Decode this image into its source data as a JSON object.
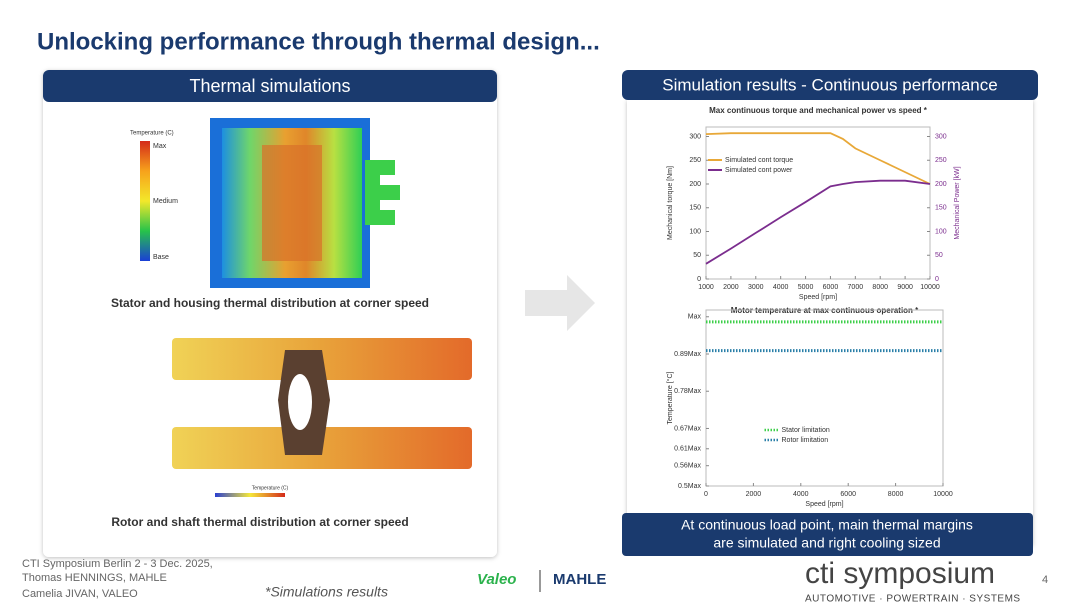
{
  "title": "Unlocking performance through thermal design...",
  "left_panel": {
    "title": "Thermal simulations",
    "stator_legend": {
      "title": "Temperature (C)",
      "labels": [
        "Max",
        "Medium",
        "Base"
      ]
    },
    "stator_caption": "Stator and housing thermal distribution at corner speed",
    "rotor_legend": {
      "title": "Temperature (C)"
    },
    "rotor_caption": "Rotor and shaft thermal distribution at corner  speed"
  },
  "right_panel": {
    "title": "Simulation results - Continuous performance",
    "footer": [
      "At continuous load point, main thermal margins",
      "are simulated and right cooling sized"
    ]
  },
  "footer": {
    "event": [
      "CTI Symposium Berlin 2 - 3 Dec. 2025,",
      "Thomas HENNINGS, MAHLE",
      "Camelia JIVAN, VALEO"
    ],
    "note": "*Simulations results",
    "logos": [
      "Valeo",
      "MAHLE"
    ],
    "brand": "cti symposium",
    "tagline": "AUTOMOTIVE · POWERTRAIN · SYSTEMS",
    "page": "4"
  },
  "chart_data": [
    {
      "type": "line",
      "title": "Max continuous torque and mechanical power vs speed *",
      "x_label": "Speed [rpm]",
      "y_label": "Mechanical torque [Nm]",
      "y2_label": "Mechanical Power [kW]",
      "x": [
        1000,
        2000,
        3000,
        4000,
        5000,
        6000,
        6500,
        7000,
        8000,
        9000,
        10000
      ],
      "xlim": [
        1000,
        10000
      ],
      "xticks": [
        1000,
        2000,
        3000,
        4000,
        5000,
        6000,
        7000,
        8000,
        9000,
        10000
      ],
      "ylim": [
        0,
        320
      ],
      "yticks": [
        0,
        50,
        100,
        150,
        200,
        250,
        300
      ],
      "y2lim": [
        0,
        320
      ],
      "y2ticks": [
        0,
        50,
        100,
        150,
        200,
        250,
        300
      ],
      "legend": "upper left",
      "line_style": "solid",
      "series": [
        {
          "name": "Simulated cont torque",
          "color": "#e8a838",
          "values": [
            305,
            307,
            307,
            307,
            307,
            307,
            295,
            275,
            250,
            225,
            200
          ]
        },
        {
          "name": "Simulated cont power",
          "color": "#7b2d8e",
          "axis": "y2",
          "values": [
            32,
            64,
            97,
            130,
            162,
            195,
            200,
            204,
            207,
            207,
            200
          ]
        }
      ]
    },
    {
      "type": "line",
      "title": "Motor temperature at max continuous operation *",
      "x_label": "Speed [rpm]",
      "y_label": "Temperature [°C]",
      "x": [
        0,
        10000
      ],
      "xlim": [
        0,
        10000
      ],
      "xticks": [
        0,
        2000,
        4000,
        6000,
        8000,
        10000
      ],
      "ylim": [
        0.5,
        1.02
      ],
      "yticks": [
        {
          "value": 0.5,
          "label": "0.5Max"
        },
        {
          "value": 0.56,
          "label": "0.56Max"
        },
        {
          "value": 0.61,
          "label": "0.61Max"
        },
        {
          "value": 0.67,
          "label": "0.67Max"
        },
        {
          "value": 0.78,
          "label": "0.78Max"
        },
        {
          "value": 0.89,
          "label": "0.89Max"
        },
        {
          "value": 1,
          "label": "Max"
        }
      ],
      "legend": "lower center",
      "line_style": "dotted",
      "series": [
        {
          "name": "Stator limitation",
          "color": "#3ecf4a",
          "values": [
            0.985,
            0.985
          ]
        },
        {
          "name": "Rotor limitation",
          "color": "#2a7fa8",
          "values": [
            0.9,
            0.9
          ]
        }
      ]
    }
  ]
}
